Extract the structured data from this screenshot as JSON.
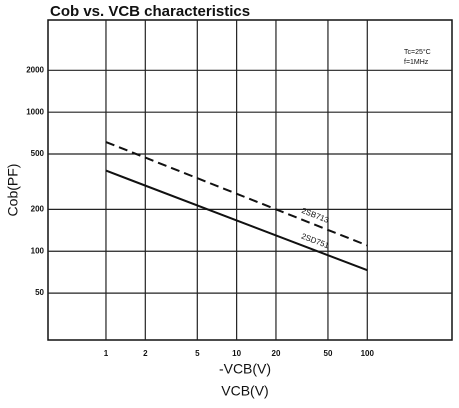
{
  "chart_data": {
    "type": "line",
    "title": "Cob vs. VCB characteristics",
    "xlabel": "-VCB(V)",
    "xlabel2": "VCB(V)",
    "ylabel": "Cob(PF)",
    "annotations": [
      "Tc=25°C",
      "f=1MHz"
    ],
    "x": [
      1,
      100
    ],
    "series": [
      {
        "name": "2SB713",
        "color": "#111111",
        "dashed": true,
        "values": [
          610,
          110
        ]
      },
      {
        "name": "2SD751",
        "color": "#111111",
        "dashed": false,
        "values": [
          380,
          73
        ]
      }
    ],
    "xscale": "log",
    "yscale": "log",
    "xlim": [
      0.36,
      445
    ],
    "ylim": [
      23,
      4600
    ],
    "xticks": [
      1,
      2,
      5,
      10,
      20,
      50,
      100
    ],
    "yticks": [
      50,
      100,
      200,
      500,
      1000,
      2000
    ],
    "grid": true
  }
}
